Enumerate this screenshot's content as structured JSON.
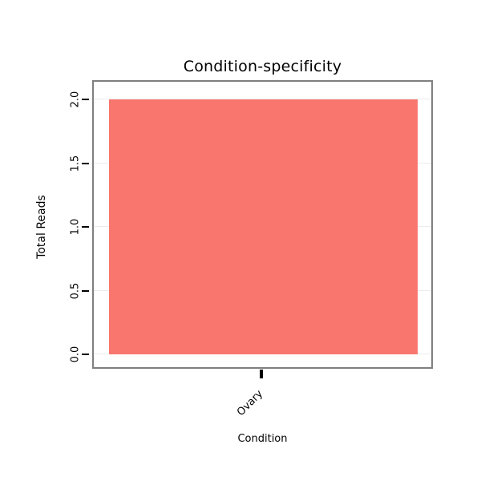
{
  "chart_data": {
    "type": "bar",
    "title": "Condition-specificity",
    "xlabel": "Condition",
    "ylabel": "Total Reads",
    "categories": [
      "Ovary"
    ],
    "values": [
      2.0
    ],
    "ylim": [
      0,
      2.0
    ],
    "yticks": [
      "0.0",
      "0.5",
      "1.0",
      "1.5",
      "2.0"
    ],
    "grid": "on",
    "legend": "none",
    "bar_color": "#F8766D",
    "border_color": "#7F7F7F",
    "grid_color": "#ECECEC",
    "tick_color": "#000000"
  }
}
